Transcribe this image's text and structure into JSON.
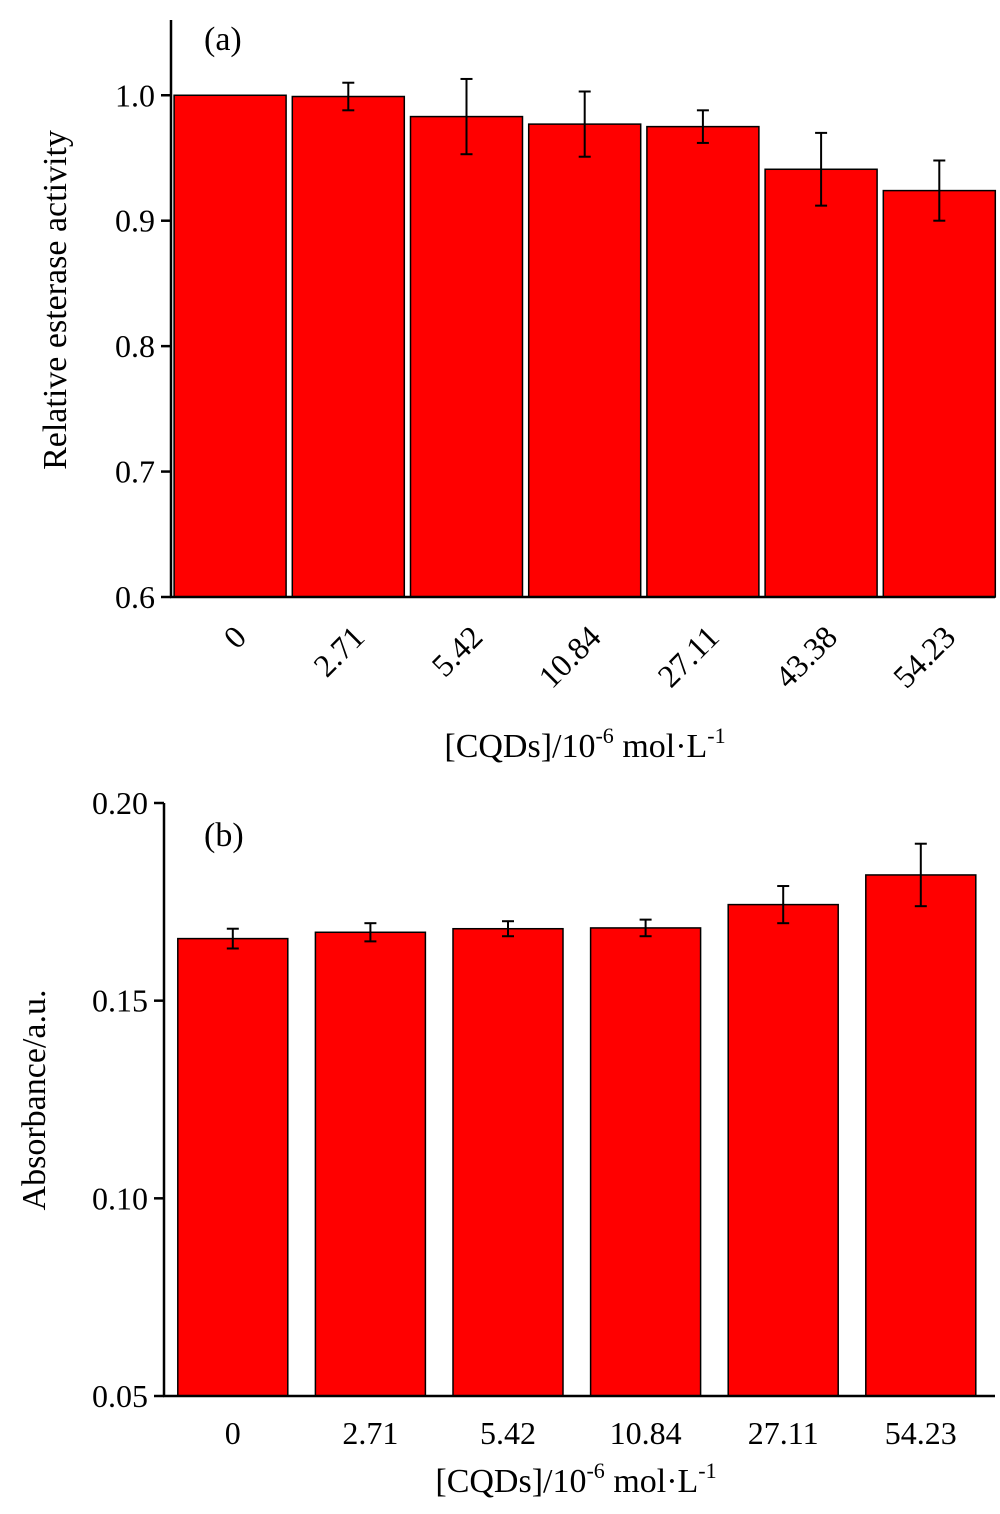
{
  "chart_data": [
    {
      "type": "bar",
      "panel_label": "(a)",
      "categories": [
        "0",
        "2.71",
        "5.42",
        "10.84",
        "27.11",
        "43.38",
        "54.23"
      ],
      "values": [
        1.0,
        0.999,
        0.983,
        0.977,
        0.975,
        0.941,
        0.924
      ],
      "errors": [
        0.0,
        0.011,
        0.03,
        0.026,
        0.013,
        0.029,
        0.024
      ],
      "color": "#ff0000",
      "ylim": [
        0.6,
        1.06
      ],
      "yticks": [
        "0.6",
        "0.7",
        "0.8",
        "0.9",
        "1.0"
      ],
      "xtick_rotation": "rotated -45°",
      "ylabel": "Relative esterase activity",
      "xlabel": {
        "base": "[CQDs]/10",
        "exp1": "-6",
        "mid": " mol·L",
        "exp2": "-1"
      },
      "grid": false,
      "legend": "none"
    },
    {
      "type": "bar",
      "panel_label": "(b)",
      "categories": [
        "0",
        "2.71",
        "5.42",
        "10.84",
        "27.11",
        "54.23"
      ],
      "values": [
        0.1657,
        0.1673,
        0.1682,
        0.1684,
        0.1743,
        0.1818
      ],
      "errors": [
        0.0025,
        0.0023,
        0.0019,
        0.0021,
        0.0047,
        0.0079
      ],
      "color": "#ff0000",
      "ylim": [
        0.05,
        0.2
      ],
      "yticks": [
        "0.05",
        "0.10",
        "0.15",
        "0.20"
      ],
      "xtick_rotation": "horizontal",
      "ylabel": "Absorbance/a.u.",
      "xlabel": {
        "base": "[CQDs]/10",
        "exp1": "-6",
        "mid": " mol·L",
        "exp2": "-1"
      },
      "grid": false,
      "legend": "none"
    }
  ]
}
